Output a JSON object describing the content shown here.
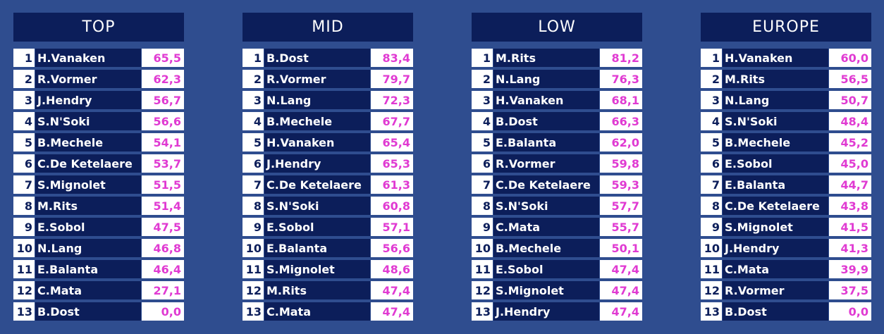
{
  "panels": [
    {
      "title": "TOP",
      "rows": [
        {
          "rank": "1",
          "name": "H.Vanaken",
          "score": "65,5"
        },
        {
          "rank": "2",
          "name": "R.Vormer",
          "score": "62,3"
        },
        {
          "rank": "3",
          "name": "J.Hendry",
          "score": "56,7"
        },
        {
          "rank": "4",
          "name": "S.N'Soki",
          "score": "56,6"
        },
        {
          "rank": "5",
          "name": "B.Mechele",
          "score": "54,1"
        },
        {
          "rank": "6",
          "name": "C.De Ketelaere",
          "score": "53,7"
        },
        {
          "rank": "7",
          "name": "S.Mignolet",
          "score": "51,5"
        },
        {
          "rank": "8",
          "name": "M.Rits",
          "score": "51,4"
        },
        {
          "rank": "9",
          "name": "E.Sobol",
          "score": "47,5"
        },
        {
          "rank": "10",
          "name": "N.Lang",
          "score": "46,8"
        },
        {
          "rank": "11",
          "name": "E.Balanta",
          "score": "46,4"
        },
        {
          "rank": "12",
          "name": "C.Mata",
          "score": "27,1"
        },
        {
          "rank": "13",
          "name": "B.Dost",
          "score": "0,0"
        }
      ]
    },
    {
      "title": "MID",
      "rows": [
        {
          "rank": "1",
          "name": "B.Dost",
          "score": "83,4"
        },
        {
          "rank": "2",
          "name": "R.Vormer",
          "score": "79,7"
        },
        {
          "rank": "3",
          "name": "N.Lang",
          "score": "72,3"
        },
        {
          "rank": "4",
          "name": "B.Mechele",
          "score": "67,7"
        },
        {
          "rank": "5",
          "name": "H.Vanaken",
          "score": "65,4"
        },
        {
          "rank": "6",
          "name": "J.Hendry",
          "score": "65,3"
        },
        {
          "rank": "7",
          "name": "C.De Ketelaere",
          "score": "61,3"
        },
        {
          "rank": "8",
          "name": "S.N'Soki",
          "score": "60,8"
        },
        {
          "rank": "9",
          "name": "E.Sobol",
          "score": "57,1"
        },
        {
          "rank": "10",
          "name": "E.Balanta",
          "score": "56,6"
        },
        {
          "rank": "11",
          "name": "S.Mignolet",
          "score": "48,6"
        },
        {
          "rank": "12",
          "name": "M.Rits",
          "score": "47,4"
        },
        {
          "rank": "13",
          "name": "C.Mata",
          "score": "47,4"
        }
      ]
    },
    {
      "title": "LOW",
      "rows": [
        {
          "rank": "1",
          "name": "M.Rits",
          "score": "81,2"
        },
        {
          "rank": "2",
          "name": "N.Lang",
          "score": "76,3"
        },
        {
          "rank": "3",
          "name": "H.Vanaken",
          "score": "68,1"
        },
        {
          "rank": "4",
          "name": "B.Dost",
          "score": "66,3"
        },
        {
          "rank": "5",
          "name": "E.Balanta",
          "score": "62,0"
        },
        {
          "rank": "6",
          "name": "R.Vormer",
          "score": "59,8"
        },
        {
          "rank": "7",
          "name": "C.De Ketelaere",
          "score": "59,3"
        },
        {
          "rank": "8",
          "name": "S.N'Soki",
          "score": "57,7"
        },
        {
          "rank": "9",
          "name": "C.Mata",
          "score": "55,7"
        },
        {
          "rank": "10",
          "name": "B.Mechele",
          "score": "50,1"
        },
        {
          "rank": "11",
          "name": "E.Sobol",
          "score": "47,4"
        },
        {
          "rank": "12",
          "name": "S.Mignolet",
          "score": "47,4"
        },
        {
          "rank": "13",
          "name": "J.Hendry",
          "score": "47,4"
        }
      ]
    },
    {
      "title": "EUROPE",
      "rows": [
        {
          "rank": "1",
          "name": "H.Vanaken",
          "score": "60,0"
        },
        {
          "rank": "2",
          "name": "M.Rits",
          "score": "56,5"
        },
        {
          "rank": "3",
          "name": "N.Lang",
          "score": "50,7"
        },
        {
          "rank": "4",
          "name": "S.N'Soki",
          "score": "48,4"
        },
        {
          "rank": "5",
          "name": "B.Mechele",
          "score": "45,2"
        },
        {
          "rank": "6",
          "name": "E.Sobol",
          "score": "45,0"
        },
        {
          "rank": "7",
          "name": "E.Balanta",
          "score": "44,7"
        },
        {
          "rank": "8",
          "name": "C.De Ketelaere",
          "score": "43,8"
        },
        {
          "rank": "9",
          "name": "S.Mignolet",
          "score": "41,5"
        },
        {
          "rank": "10",
          "name": "J.Hendry",
          "score": "41,3"
        },
        {
          "rank": "11",
          "name": "C.Mata",
          "score": "39,9"
        },
        {
          "rank": "12",
          "name": "R.Vormer",
          "score": "37,5"
        },
        {
          "rank": "13",
          "name": "B.Dost",
          "score": "0,0"
        }
      ]
    }
  ],
  "colors": {
    "background": "#2f4d8f",
    "header": "#0c1e5a",
    "score_text": "#e03ad2"
  }
}
